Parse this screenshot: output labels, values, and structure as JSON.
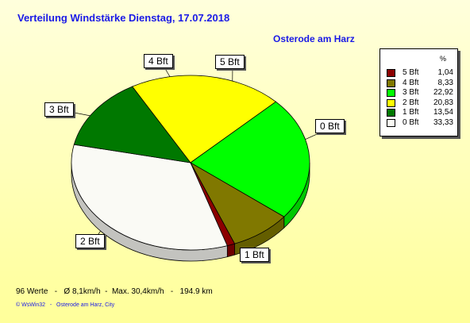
{
  "chart_data": {
    "type": "pie",
    "title": "Verteilung Windstärke  Dienstag, 17.07.2018",
    "subtitle": "Osterode am Harz",
    "legend_header": "%",
    "legend_position": "top-right",
    "slices": [
      {
        "label": "0 Bft",
        "value": 33.33,
        "value_label": "33,33",
        "color": "#fafaf5"
      },
      {
        "label": "1 Bft",
        "value": 13.54,
        "value_label": "13,54",
        "color": "#007800"
      },
      {
        "label": "2 Bft",
        "value": 20.83,
        "value_label": "20,83",
        "color": "#ffff00"
      },
      {
        "label": "3 Bft",
        "value": 22.92,
        "value_label": "22,92",
        "color": "#00ff00"
      },
      {
        "label": "4 Bft",
        "value": 8.33,
        "value_label": "8,33",
        "color": "#807800"
      },
      {
        "label": "5 Bft",
        "value": 1.04,
        "value_label": "1,04",
        "color": "#8c0000"
      }
    ],
    "legend_order": [
      "5 Bft",
      "4 Bft",
      "3 Bft",
      "2 Bft",
      "1 Bft",
      "0 Bft"
    ]
  },
  "footer": "96 Werte   -   Ø 8,1km/h  -  Max. 30,4km/h   -   194.9 km",
  "credit": "© WsWin32   -   Osterode am Harz, City"
}
